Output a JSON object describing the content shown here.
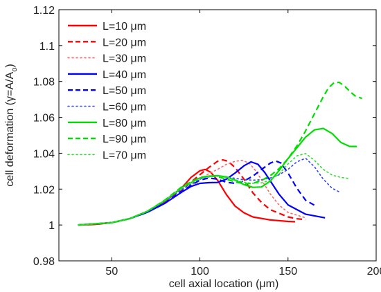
{
  "chart_data": {
    "type": "line",
    "xlabel": "cell axial location (μm)",
    "ylabel_main": "cell deformation (γ=A/A",
    "ylabel_sub": "o",
    "ylabel_close": ")",
    "xlim": [
      20,
      200
    ],
    "ylim": [
      0.98,
      1.12
    ],
    "xticks": [
      50,
      100,
      150,
      200
    ],
    "xtick_labels": [
      "50",
      "100",
      "150",
      "200"
    ],
    "yticks": [
      0.98,
      1.0,
      1.02,
      1.04,
      1.06,
      1.08,
      1.1,
      1.12
    ],
    "ytick_labels": [
      "0.98",
      "1",
      "1.02",
      "1.04",
      "1.06",
      "1.08",
      "1.1",
      "1.12"
    ],
    "grid": false,
    "legend_position": "top-left",
    "series": [
      {
        "name": "L=10 μm",
        "color": "#ff0000",
        "style": "solid",
        "x": [
          31,
          40,
          50,
          60,
          70,
          80,
          90,
          95,
          100,
          103,
          106,
          110,
          115,
          120,
          125,
          130,
          140,
          150,
          154
        ],
        "y": [
          1.0,
          1.0003,
          1.0013,
          1.0035,
          1.0075,
          1.013,
          1.021,
          1.0265,
          1.0302,
          1.031,
          1.0295,
          1.025,
          1.017,
          1.0105,
          1.0068,
          1.0045,
          1.0028,
          1.002,
          1.0018
        ]
      },
      {
        "name": "L=20 μm",
        "color": "#ff0000",
        "style": "dashed",
        "x": [
          31,
          40,
          50,
          60,
          70,
          80,
          90,
          95,
          100,
          105,
          110,
          113,
          116,
          120,
          125,
          130,
          135,
          140,
          150,
          155,
          160
        ],
        "y": [
          1.0,
          1.0003,
          1.0013,
          1.0035,
          1.0072,
          1.0125,
          1.0195,
          1.024,
          1.028,
          1.032,
          1.0355,
          1.0363,
          1.0355,
          1.032,
          1.0255,
          1.018,
          1.0125,
          1.0085,
          1.0045,
          1.0035,
          1.003
        ]
      },
      {
        "name": "L=30 μm",
        "color": "#ff6666",
        "style": "dotted",
        "x": [
          31,
          50,
          60,
          70,
          80,
          90,
          100,
          105,
          110,
          115,
          120,
          124,
          128,
          132,
          136,
          140,
          145,
          150,
          160
        ],
        "y": [
          1.0,
          1.0013,
          1.0035,
          1.007,
          1.012,
          1.0185,
          1.0255,
          1.0285,
          1.031,
          1.0338,
          1.0355,
          1.036,
          1.0345,
          1.0298,
          1.0235,
          1.0172,
          1.011,
          1.007,
          1.004
        ]
      },
      {
        "name": "L=40 μm",
        "color": "#0000ff",
        "style": "solid",
        "x": [
          31,
          50,
          60,
          70,
          80,
          90,
          95,
          100,
          105,
          110,
          115,
          120,
          125,
          129,
          133,
          137,
          140,
          145,
          150,
          160,
          171
        ],
        "y": [
          1.0,
          1.0013,
          1.0035,
          1.007,
          1.012,
          1.0185,
          1.0215,
          1.0232,
          1.0236,
          1.0237,
          1.0255,
          1.029,
          1.033,
          1.0352,
          1.0338,
          1.029,
          1.0245,
          1.017,
          1.0112,
          1.006,
          1.004
        ]
      },
      {
        "name": "L=50 μm",
        "color": "#0000ff",
        "style": "dashed",
        "x": [
          31,
          50,
          60,
          70,
          80,
          90,
          95,
          100,
          105,
          110,
          115,
          120,
          125,
          130,
          135,
          140,
          143,
          146,
          150,
          155,
          160,
          165
        ],
        "y": [
          1.0,
          1.0013,
          1.0035,
          1.007,
          1.012,
          1.019,
          1.022,
          1.025,
          1.0262,
          1.0255,
          1.0238,
          1.0232,
          1.0245,
          1.0272,
          1.031,
          1.0345,
          1.0357,
          1.0345,
          1.029,
          1.0205,
          1.0138,
          1.011
        ]
      },
      {
        "name": "L=60 μm",
        "color": "#3344ff",
        "style": "dotted",
        "x": [
          31,
          50,
          60,
          70,
          80,
          90,
          100,
          105,
          110,
          115,
          120,
          125,
          130,
          135,
          140,
          145,
          150,
          155,
          160,
          165,
          170,
          175,
          180
        ],
        "y": [
          1.0,
          1.0013,
          1.0035,
          1.0075,
          1.013,
          1.02,
          1.0255,
          1.0268,
          1.0272,
          1.0268,
          1.026,
          1.0252,
          1.025,
          1.0252,
          1.0262,
          1.028,
          1.031,
          1.0352,
          1.0372,
          1.0325,
          1.0255,
          1.0205,
          1.018
        ]
      },
      {
        "name": "L=80 μm",
        "color": "#00dd00",
        "style": "solid",
        "x": [
          31,
          50,
          60,
          70,
          80,
          90,
          100,
          105,
          110,
          115,
          120,
          125,
          130,
          135,
          140,
          145,
          150,
          155,
          160,
          165,
          170,
          175,
          180,
          185,
          189
        ],
        "y": [
          1.0,
          1.0013,
          1.0035,
          1.0075,
          1.0135,
          1.021,
          1.0262,
          1.0272,
          1.0275,
          1.0268,
          1.025,
          1.0225,
          1.021,
          1.0212,
          1.0245,
          1.0305,
          1.037,
          1.043,
          1.049,
          1.053,
          1.0538,
          1.051,
          1.046,
          1.0438,
          1.0438
        ]
      },
      {
        "name": "L=90 μm",
        "color": "#00dd00",
        "style": "dashed",
        "x": [
          31,
          50,
          60,
          70,
          80,
          90,
          100,
          105,
          110,
          115,
          120,
          125,
          130,
          135,
          140,
          145,
          150,
          155,
          160,
          165,
          170,
          173,
          176,
          179,
          182,
          185,
          188,
          192
        ],
        "y": [
          1.0,
          1.0013,
          1.0035,
          1.0075,
          1.0138,
          1.0215,
          1.0265,
          1.0272,
          1.027,
          1.0255,
          1.024,
          1.023,
          1.0232,
          1.0248,
          1.0275,
          1.0315,
          1.037,
          1.044,
          1.0525,
          1.062,
          1.0715,
          1.0765,
          1.0792,
          1.0795,
          1.0775,
          1.0745,
          1.072,
          1.0705
        ]
      },
      {
        "name": "L=70 μm",
        "color": "#33dd33",
        "style": "dotted",
        "x": [
          31,
          50,
          60,
          70,
          80,
          90,
          100,
          105,
          110,
          115,
          120,
          125,
          130,
          135,
          140,
          145,
          150,
          155,
          160,
          165,
          170,
          175,
          180,
          184
        ],
        "y": [
          1.0,
          1.0013,
          1.0035,
          1.0075,
          1.0135,
          1.0208,
          1.026,
          1.027,
          1.0272,
          1.0265,
          1.0252,
          1.0238,
          1.0232,
          1.0235,
          1.025,
          1.0285,
          1.034,
          1.0385,
          1.0398,
          1.036,
          1.031,
          1.0278,
          1.0265,
          1.026
        ]
      }
    ]
  }
}
